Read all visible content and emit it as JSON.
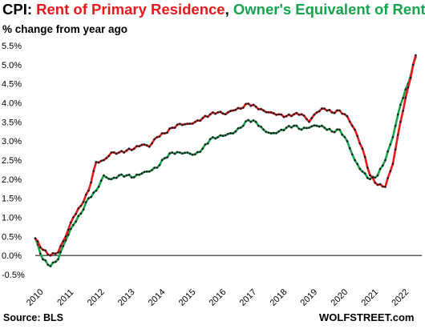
{
  "header": {
    "prefix": "CPI: ",
    "series1": "Rent of Primary  Residence",
    "sep": ", ",
    "series2": "Owner's Equivalent of Rent",
    "subtitle": "% change from year ago"
  },
  "footer": {
    "source": "Source: BLS",
    "brand": "WOLFSTREET.com"
  },
  "colors": {
    "rent": "#e8191c",
    "oer": "#14a44d",
    "markers": "#1a1a1a",
    "zero_line": "#000000"
  },
  "chart_data": {
    "type": "line",
    "title": "CPI: Rent of Primary  Residence, Owner's Equivalent of Rent",
    "ylabel": "% change from year ago",
    "xlabel": "",
    "ylim": [
      -0.5,
      5.5
    ],
    "yticks": [
      "-0.5%",
      "0.0%",
      "0.5%",
      "1.0%",
      "1.5%",
      "2.0%",
      "2.5%",
      "3.0%",
      "3.5%",
      "4.0%",
      "4.5%",
      "5.0%",
      "5.5%"
    ],
    "xticks": [
      "2010",
      "2011",
      "2012",
      "2013",
      "2014",
      "2015",
      "2016",
      "2017",
      "2018",
      "2019",
      "2020",
      "2021",
      "2022"
    ],
    "grid": false,
    "markers": "monthly",
    "series": [
      {
        "name": "Rent of Primary  Residence",
        "color": "#e8191c",
        "points": [
          [
            "2010-01",
            0.45
          ],
          [
            "2010-04",
            0.15
          ],
          [
            "2010-07",
            0.0
          ],
          [
            "2010-10",
            0.08
          ],
          [
            "2011-01",
            0.5
          ],
          [
            "2011-04",
            1.0
          ],
          [
            "2011-07",
            1.3
          ],
          [
            "2011-10",
            1.7
          ],
          [
            "2012-01",
            2.45
          ],
          [
            "2012-04",
            2.5
          ],
          [
            "2012-07",
            2.7
          ],
          [
            "2012-10",
            2.7
          ],
          [
            "2013-01",
            2.75
          ],
          [
            "2013-04",
            2.8
          ],
          [
            "2013-07",
            2.9
          ],
          [
            "2013-10",
            2.85
          ],
          [
            "2014-01",
            3.1
          ],
          [
            "2014-04",
            3.2
          ],
          [
            "2014-07",
            3.35
          ],
          [
            "2014-10",
            3.45
          ],
          [
            "2015-01",
            3.45
          ],
          [
            "2015-04",
            3.5
          ],
          [
            "2015-07",
            3.6
          ],
          [
            "2015-10",
            3.7
          ],
          [
            "2016-01",
            3.75
          ],
          [
            "2016-04",
            3.7
          ],
          [
            "2016-07",
            3.8
          ],
          [
            "2016-10",
            3.85
          ],
          [
            "2017-01",
            3.98
          ],
          [
            "2017-04",
            3.9
          ],
          [
            "2017-07",
            3.8
          ],
          [
            "2017-10",
            3.75
          ],
          [
            "2018-01",
            3.7
          ],
          [
            "2018-04",
            3.65
          ],
          [
            "2018-07",
            3.7
          ],
          [
            "2018-10",
            3.7
          ],
          [
            "2019-01",
            3.5
          ],
          [
            "2019-04",
            3.75
          ],
          [
            "2019-07",
            3.85
          ],
          [
            "2019-10",
            3.75
          ],
          [
            "2020-01",
            3.8
          ],
          [
            "2020-04",
            3.65
          ],
          [
            "2020-07",
            3.3
          ],
          [
            "2020-10",
            2.8
          ],
          [
            "2021-01",
            2.1
          ],
          [
            "2021-04",
            1.85
          ],
          [
            "2021-07",
            1.8
          ],
          [
            "2021-10",
            2.4
          ],
          [
            "2022-01",
            3.5
          ],
          [
            "2022-04",
            4.4
          ],
          [
            "2022-07",
            5.25
          ]
        ]
      },
      {
        "name": "Owner's Equivalent of Rent",
        "color": "#14a44d",
        "points": [
          [
            "2010-01",
            0.45
          ],
          [
            "2010-04",
            -0.1
          ],
          [
            "2010-07",
            -0.28
          ],
          [
            "2010-10",
            -0.1
          ],
          [
            "2011-01",
            0.4
          ],
          [
            "2011-04",
            0.8
          ],
          [
            "2011-07",
            1.1
          ],
          [
            "2011-10",
            1.5
          ],
          [
            "2012-01",
            1.7
          ],
          [
            "2012-04",
            2.1
          ],
          [
            "2012-07",
            2.0
          ],
          [
            "2012-10",
            2.1
          ],
          [
            "2013-01",
            2.1
          ],
          [
            "2013-04",
            2.05
          ],
          [
            "2013-07",
            2.15
          ],
          [
            "2013-10",
            2.2
          ],
          [
            "2014-01",
            2.3
          ],
          [
            "2014-04",
            2.55
          ],
          [
            "2014-07",
            2.7
          ],
          [
            "2014-10",
            2.7
          ],
          [
            "2015-01",
            2.7
          ],
          [
            "2015-04",
            2.65
          ],
          [
            "2015-07",
            2.8
          ],
          [
            "2015-10",
            3.05
          ],
          [
            "2016-01",
            3.1
          ],
          [
            "2016-04",
            3.15
          ],
          [
            "2016-07",
            3.2
          ],
          [
            "2016-10",
            3.35
          ],
          [
            "2017-01",
            3.55
          ],
          [
            "2017-04",
            3.5
          ],
          [
            "2017-07",
            3.3
          ],
          [
            "2017-10",
            3.2
          ],
          [
            "2018-01",
            3.25
          ],
          [
            "2018-04",
            3.35
          ],
          [
            "2018-07",
            3.4
          ],
          [
            "2018-10",
            3.3
          ],
          [
            "2019-01",
            3.35
          ],
          [
            "2019-04",
            3.4
          ],
          [
            "2019-07",
            3.35
          ],
          [
            "2019-10",
            3.25
          ],
          [
            "2020-01",
            3.3
          ],
          [
            "2020-04",
            3.0
          ],
          [
            "2020-07",
            2.5
          ],
          [
            "2020-10",
            2.2
          ],
          [
            "2021-01",
            2.0
          ],
          [
            "2021-04",
            2.1
          ],
          [
            "2021-07",
            2.5
          ],
          [
            "2021-10",
            3.1
          ],
          [
            "2022-01",
            3.95
          ],
          [
            "2022-04",
            4.5
          ],
          [
            "2022-07",
            5.2
          ]
        ]
      }
    ]
  }
}
